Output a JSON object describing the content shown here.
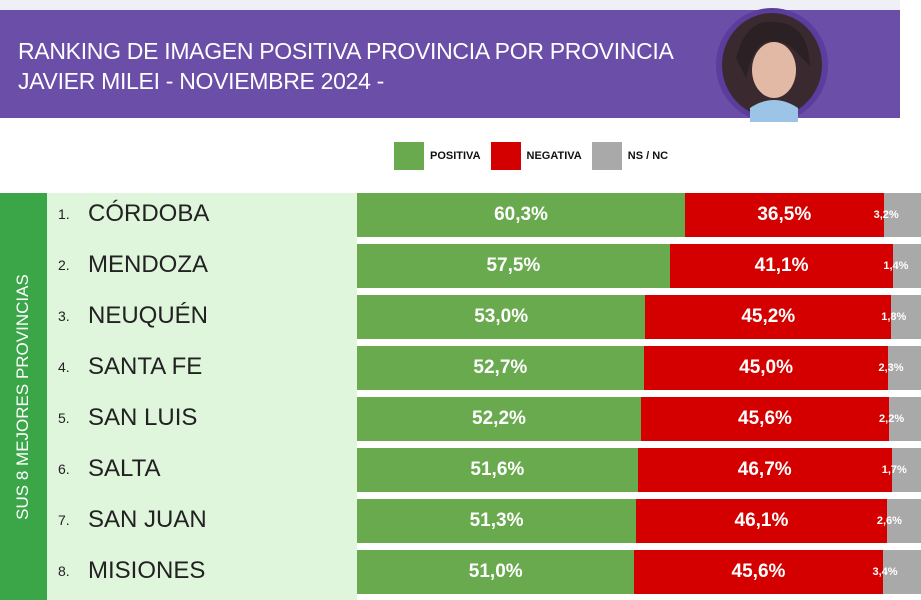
{
  "header": {
    "title_line1": "RANKING DE IMAGEN POSITIVA PROVINCIA POR PROVINCIA",
    "title_line2": "JAVIER MILEI - NOVIEMBRE 2024 -",
    "photo_icon": "portrait-photo"
  },
  "side_label": "SUS 8 MEJORES PROVINCIAS",
  "colors": {
    "header": "#6a4ea8",
    "positiva": "#6aaa4f",
    "negativa": "#d40000",
    "nsnc": "#a9a9a9",
    "side": "#3aa648",
    "label_bg": "#dff5dc"
  },
  "chart_data": {
    "type": "bar",
    "orientation": "horizontal",
    "stacked": true,
    "title": "RANKING DE IMAGEN POSITIVA PROVINCIA POR PROVINCIA JAVIER MILEI - NOVIEMBRE 2024 -",
    "legend": {
      "placement": "top",
      "entries": [
        "POSITIVA",
        "NEGATIVA",
        "NS / NC"
      ]
    },
    "categories": [
      "CÓRDOBA",
      "MENDOZA",
      "NEUQUÉN",
      "SANTA FE",
      "SAN LUIS",
      "SALTA",
      "SAN JUAN",
      "MISIONES"
    ],
    "ranks": [
      "1.",
      "2.",
      "3.",
      "4.",
      "5.",
      "6.",
      "7.",
      "8."
    ],
    "series": [
      {
        "name": "POSITIVA",
        "values": [
          60.3,
          57.5,
          53.0,
          52.7,
          52.2,
          51.6,
          51.3,
          51.0
        ],
        "labels": [
          "60,3%",
          "57,5%",
          "53,0%",
          "52,7%",
          "52,2%",
          "51,6%",
          "51,3%",
          "51,0%"
        ]
      },
      {
        "name": "NEGATIVA",
        "values": [
          36.5,
          41.1,
          45.2,
          45.0,
          45.6,
          46.7,
          46.1,
          45.6
        ],
        "labels": [
          "36,5%",
          "41,1%",
          "45,2%",
          "45,0%",
          "45,6%",
          "46,7%",
          "46,1%",
          "45,6%"
        ]
      },
      {
        "name": "NS / NC",
        "values": [
          3.2,
          1.4,
          1.8,
          2.3,
          2.2,
          1.7,
          2.6,
          3.4
        ],
        "labels": [
          "3,2%",
          "1,4%",
          "1,8%",
          "2,3%",
          "2,2%",
          "1,7%",
          "2,6%",
          "3,4%"
        ]
      }
    ],
    "xlim": [
      0,
      100
    ],
    "grid": false
  }
}
